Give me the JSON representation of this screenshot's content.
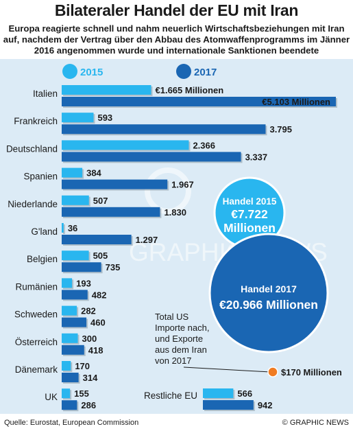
{
  "title": "Bilateraler Handel der EU mit Iran",
  "subtitle": "Europa reagierte schnell und nahm neuerlich Wirtschaftsbeziehungen mit Iran auf, nachdem der Vertrag über den Abbau des Atomwaffenprogramms im Jänner 2016 angenommen wurde und internationale Sanktionen beendete",
  "colors": {
    "y2015": "#29b6ef",
    "y2017": "#1a66b3",
    "panel": "#dcebf6",
    "us": "#f07c22"
  },
  "chart_data": {
    "type": "bar",
    "orientation": "horizontal",
    "unit": "Millionen €",
    "series": [
      {
        "name": "2015",
        "values": [
          1665,
          593,
          2366,
          384,
          507,
          36,
          505,
          193,
          282,
          300,
          170,
          155,
          566
        ]
      },
      {
        "name": "2017",
        "values": [
          5103,
          3795,
          3337,
          1967,
          1830,
          1297,
          735,
          482,
          460,
          418,
          314,
          286,
          942
        ]
      }
    ],
    "categories": [
      "Italien",
      "Frankreich",
      "Deutschland",
      "Spanien",
      "Niederlande",
      "G'land",
      "Belgien",
      "Rumänien",
      "Schweden",
      "Österreich",
      "Dänemark",
      "UK",
      "Restliche EU"
    ],
    "data_labels": {
      "2015": [
        "€1.665 Millionen",
        "593",
        "2.366",
        "384",
        "507",
        "36",
        "505",
        "193",
        "282",
        "300",
        "170",
        "155",
        "566"
      ],
      "2017": [
        "€5.103 Millionen",
        "3.795",
        "3.337",
        "1.967",
        "1.830",
        "1.297",
        "735",
        "482",
        "460",
        "418",
        "314",
        "286",
        "942"
      ]
    },
    "legend": [
      "2015",
      "2017"
    ],
    "legend_position": "top"
  },
  "totals": {
    "2015": {
      "label": "Handel 2015",
      "value": 7722,
      "value_label": "€7.722",
      "unit_label": "Millionen"
    },
    "2017": {
      "label": "Handel 2017",
      "value": 20966,
      "value_label": "€20.966 Millionen"
    }
  },
  "us_note": {
    "lines": [
      "Total US",
      "Importe nach,",
      "und Exporte",
      "aus dem Iran",
      "von 2017"
    ],
    "value": 170,
    "value_label": "$170 Millionen"
  },
  "watermark": "GRAPHIC NEWS",
  "source": "Quelle: Eurostat, European Commission",
  "credit": "© GRAPHIC NEWS"
}
